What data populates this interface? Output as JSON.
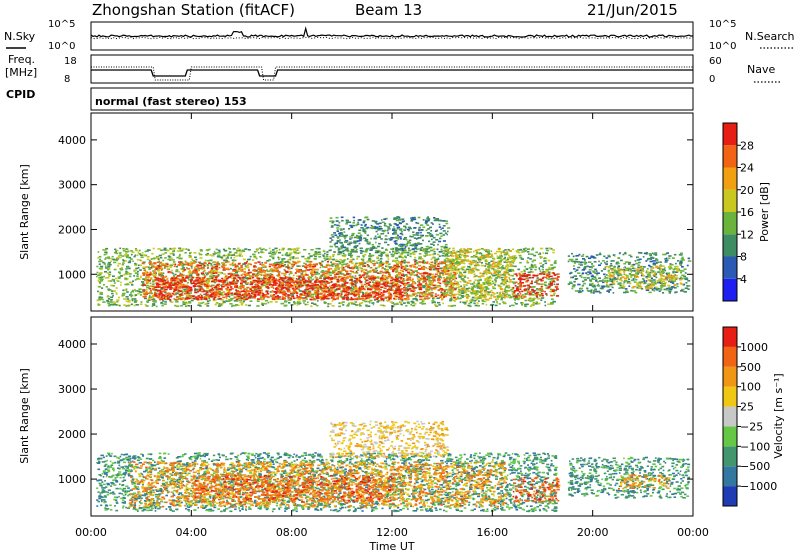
{
  "header": {
    "station": "Zhongshan Station (fitACF)",
    "beam": "Beam 13",
    "date": "21/Jun/2015"
  },
  "status_panel": {
    "nsky_label": "N.Sky",
    "nsearch_label": "N.Search",
    "nsky_ticks": [
      "10^5",
      "10^0"
    ],
    "nsearch_ticks": [
      "10^5",
      "10^0"
    ],
    "freq_label_1": "Freq.",
    "freq_label_2": "[MHz]",
    "freq_ticks": [
      "18",
      "8"
    ],
    "nave_label": "Nave",
    "nave_ticks": [
      "60",
      "0"
    ],
    "cpid_label": "CPID",
    "cpid_text": "normal (fast stereo) 153"
  },
  "chart_data": [
    {
      "type": "heatmap",
      "name": "power",
      "ylabel": "Slant Range [km]",
      "y_ticks": [
        1000,
        2000,
        3000,
        4000
      ],
      "ylim": [
        180,
        4600
      ],
      "x_range_hours": [
        0,
        24
      ],
      "colorbar_label": "Power [dB]",
      "colorbar_ticks": [
        "4",
        "8",
        "12",
        "16",
        "20",
        "24",
        "28"
      ],
      "colorbar_colors": [
        "#1e1ef0",
        "#2a5ab4",
        "#3c8c64",
        "#6ab43c",
        "#c8c820",
        "#f0a010",
        "#f06414",
        "#e61e14"
      ],
      "regions": [
        {
          "t0": 0.2,
          "t1": 18.5,
          "r0": 300,
          "r1": 1600,
          "level": 3
        },
        {
          "t0": 2.0,
          "t1": 14.5,
          "r0": 450,
          "r1": 1300,
          "level": 6
        },
        {
          "t0": 2.5,
          "t1": 12.5,
          "r0": 450,
          "r1": 950,
          "level": 7
        },
        {
          "t0": 9.5,
          "t1": 14.2,
          "r0": 1500,
          "r1": 2300,
          "level": 2
        },
        {
          "t0": 14.0,
          "t1": 16.8,
          "r0": 450,
          "r1": 1600,
          "level": 4
        },
        {
          "t0": 16.8,
          "t1": 18.6,
          "r0": 500,
          "r1": 1050,
          "level": 7
        },
        {
          "t0": 19.0,
          "t1": 23.8,
          "r0": 600,
          "r1": 1500,
          "level": 2
        },
        {
          "t0": 20.5,
          "t1": 23.5,
          "r0": 700,
          "r1": 1200,
          "level": 4
        }
      ]
    },
    {
      "type": "heatmap",
      "name": "velocity",
      "ylabel": "Slant Range [km]",
      "y_ticks": [
        1000,
        2000,
        3000,
        4000
      ],
      "ylim": [
        180,
        4600
      ],
      "x_range_hours": [
        0,
        24
      ],
      "colorbar_label": "Velocity [m s⁻¹]",
      "colorbar_ticks": [
        "1000",
        "500",
        "100",
        "25",
        "−25",
        "−100",
        "−500",
        "−1000"
      ],
      "colorbar_colors": [
        "#1e3cb4",
        "#3278a0",
        "#41966e",
        "#64c846",
        "#c8c8c8",
        "#f0c814",
        "#f09614",
        "#f06414",
        "#e61e14"
      ],
      "regions": [
        {
          "t0": 0.2,
          "t1": 18.5,
          "r0": 300,
          "r1": 1600,
          "level": 2
        },
        {
          "t0": 1.5,
          "t1": 16.5,
          "r0": 400,
          "r1": 1400,
          "level": 6
        },
        {
          "t0": 4.0,
          "t1": 12.0,
          "r0": 500,
          "r1": 1100,
          "level": 7
        },
        {
          "t0": 9.5,
          "t1": 14.2,
          "r0": 1500,
          "r1": 2300,
          "level": 5
        },
        {
          "t0": 16.8,
          "t1": 18.6,
          "r0": 500,
          "r1": 1050,
          "level": 7
        },
        {
          "t0": 19.0,
          "t1": 23.8,
          "r0": 600,
          "r1": 1500,
          "level": 2
        },
        {
          "t0": 21.0,
          "t1": 23.0,
          "r0": 800,
          "r1": 1100,
          "level": 6
        }
      ]
    }
  ],
  "x_axis": {
    "label": "Time UT",
    "hours": [
      0,
      4,
      8,
      12,
      16,
      20,
      24
    ],
    "tick_labels": [
      "00:00",
      "04:00",
      "08:00",
      "12:00",
      "16:00",
      "20:00",
      "00:00"
    ]
  }
}
